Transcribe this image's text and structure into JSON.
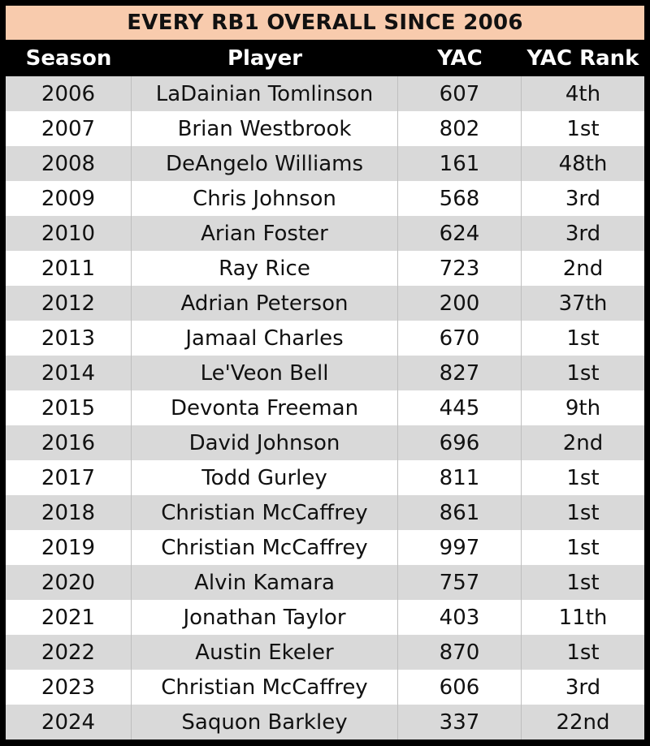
{
  "title": "EVERY RB1 OVERALL SINCE 2006",
  "colors": {
    "title_bg": "#f8cbad",
    "header_bg": "#000000",
    "row_shaded": "#d9d9d9",
    "row_plain": "#ffffff"
  },
  "headers": {
    "season": "Season",
    "player": "Player",
    "yac": "YAC",
    "rank": "YAC Rank"
  },
  "rows": [
    {
      "season": "2006",
      "player": "LaDainian Tomlinson",
      "yac": "607",
      "rank": "4th"
    },
    {
      "season": "2007",
      "player": "Brian Westbrook",
      "yac": "802",
      "rank": "1st"
    },
    {
      "season": "2008",
      "player": "DeAngelo Williams",
      "yac": "161",
      "rank": "48th"
    },
    {
      "season": "2009",
      "player": "Chris Johnson",
      "yac": "568",
      "rank": "3rd"
    },
    {
      "season": "2010",
      "player": "Arian Foster",
      "yac": "624",
      "rank": "3rd"
    },
    {
      "season": "2011",
      "player": "Ray Rice",
      "yac": "723",
      "rank": "2nd"
    },
    {
      "season": "2012",
      "player": "Adrian Peterson",
      "yac": "200",
      "rank": "37th"
    },
    {
      "season": "2013",
      "player": "Jamaal Charles",
      "yac": "670",
      "rank": "1st"
    },
    {
      "season": "2014",
      "player": "Le'Veon Bell",
      "yac": "827",
      "rank": "1st"
    },
    {
      "season": "2015",
      "player": "Devonta Freeman",
      "yac": "445",
      "rank": "9th"
    },
    {
      "season": "2016",
      "player": "David Johnson",
      "yac": "696",
      "rank": "2nd"
    },
    {
      "season": "2017",
      "player": "Todd Gurley",
      "yac": "811",
      "rank": "1st"
    },
    {
      "season": "2018",
      "player": "Christian McCaffrey",
      "yac": "861",
      "rank": "1st"
    },
    {
      "season": "2019",
      "player": "Christian McCaffrey",
      "yac": "997",
      "rank": "1st"
    },
    {
      "season": "2020",
      "player": "Alvin Kamara",
      "yac": "757",
      "rank": "1st"
    },
    {
      "season": "2021",
      "player": "Jonathan Taylor",
      "yac": "403",
      "rank": "11th"
    },
    {
      "season": "2022",
      "player": "Austin Ekeler",
      "yac": "870",
      "rank": "1st"
    },
    {
      "season": "2023",
      "player": "Christian McCaffrey",
      "yac": "606",
      "rank": "3rd"
    },
    {
      "season": "2024",
      "player": "Saquon Barkley",
      "yac": "337",
      "rank": "22nd"
    }
  ]
}
